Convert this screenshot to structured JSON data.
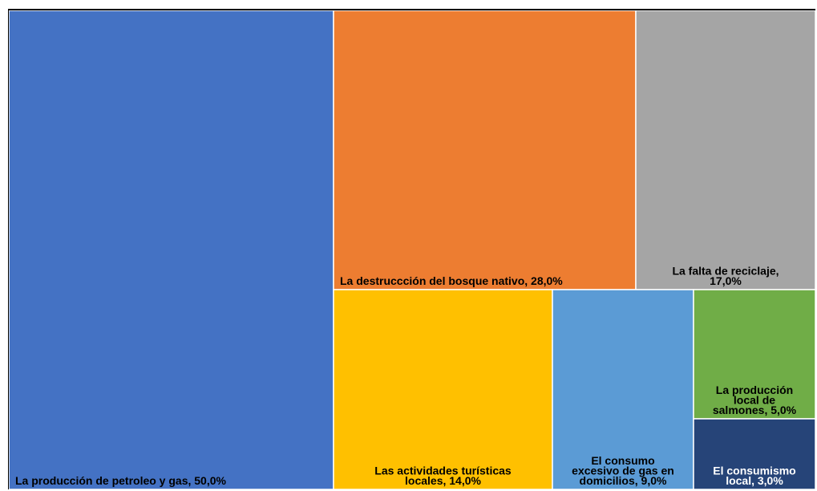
{
  "chart_data": {
    "type": "treemap",
    "items": [
      {
        "label": "La producción de petroleo y gas, 50,0%",
        "value": 50.0,
        "color": "#4472C4",
        "label_lines": [
          "La producción de petroleo y gas, 50,0%"
        ],
        "text_color": "#000000"
      },
      {
        "label": "La destruccción del bosque nativo, 28,0%",
        "value": 28.0,
        "color": "#ED7D31",
        "label_lines": [
          "La destruccción del bosque nativo, 28,0%"
        ],
        "text_color": "#000000"
      },
      {
        "label": "La falta de reciclaje, 17,0%",
        "value": 17.0,
        "color": "#A5A5A5",
        "label_lines": [
          "La falta de reciclaje,",
          "17,0%"
        ],
        "text_color": "#000000"
      },
      {
        "label": "Las actividades turísticas locales, 14,0%",
        "value": 14.0,
        "color": "#FFC000",
        "label_lines": [
          "Las actividades turísticas",
          "locales, 14,0%"
        ],
        "text_color": "#000000"
      },
      {
        "label": "El consumo excesivo de gas en domicilios, 9,0%",
        "value": 9.0,
        "color": "#5B9BD5",
        "label_lines": [
          "El consumo",
          "excesivo de gas en",
          "domicilios, 9,0%"
        ],
        "text_color": "#000000"
      },
      {
        "label": "La producción local de salmones, 5,0%",
        "value": 5.0,
        "color": "#70AD47",
        "label_lines": [
          "La producción",
          "local de",
          "salmones, 5,0%"
        ],
        "text_color": "#000000"
      },
      {
        "label": "El consumismo local, 3,0%",
        "value": 3.0,
        "color": "#264478",
        "label_lines": [
          "El consumismo",
          "local, 3,0%"
        ],
        "text_color": "#ffffff"
      }
    ]
  }
}
